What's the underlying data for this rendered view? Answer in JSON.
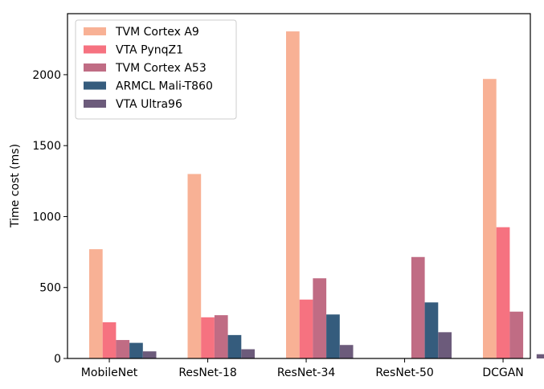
{
  "chart_data": {
    "type": "bar",
    "title": "",
    "xlabel": "",
    "ylabel": "Time cost (ms)",
    "ylim": [
      0,
      2430
    ],
    "yticks": [
      0,
      500,
      1000,
      1500,
      2000
    ],
    "grid": false,
    "legend_position": "top-left",
    "categories": [
      "MobileNet",
      "ResNet-18",
      "ResNet-34",
      "ResNet-50",
      "DCGAN"
    ],
    "series": [
      {
        "name": "TVM Cortex A9",
        "color": "#f8b195",
        "values": [
          770,
          1300,
          2305,
          null,
          1970
        ]
      },
      {
        "name": "VTA PynqZ1",
        "color": "#f67280",
        "values": [
          255,
          290,
          415,
          null,
          925
        ]
      },
      {
        "name": "TVM Cortex A53",
        "color": "#c06c84",
        "values": [
          130,
          305,
          565,
          715,
          330
        ]
      },
      {
        "name": "ARMCL Mali-T860",
        "color": "#355c7d",
        "values": [
          110,
          165,
          310,
          395,
          null
        ]
      },
      {
        "name": "VTA Ultra96",
        "color": "#6c5b7b",
        "values": [
          50,
          65,
          95,
          185,
          30
        ]
      }
    ]
  }
}
